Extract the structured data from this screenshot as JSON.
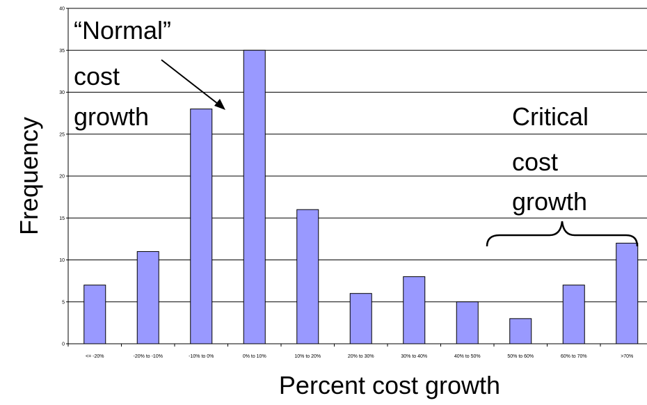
{
  "chart_data": {
    "type": "bar",
    "title": "",
    "xlabel": "Percent cost growth",
    "ylabel": "Frequency",
    "categories": [
      "<= -20%",
      "-20% to -10%",
      "-10% to 0%",
      "0% to 10%",
      "10% to 20%",
      "20% to 30%",
      "30% to 40%",
      "40% to 50%",
      "50% to 60%",
      "60% to 70%",
      ">70%"
    ],
    "values": [
      7,
      11,
      28,
      35,
      16,
      6,
      8,
      5,
      3,
      7,
      12
    ],
    "ylim": [
      0,
      40
    ],
    "yticks": [
      "0",
      "5",
      "10",
      "15",
      "20",
      "25",
      "30",
      "35",
      "40"
    ],
    "grid": "horizontal",
    "bar_color": "#9999ff",
    "bar_stroke": "#000000",
    "annotations": {
      "normal": [
        "“Normal”",
        "cost",
        "growth"
      ],
      "critical": [
        "Critical",
        "cost",
        "growth"
      ]
    }
  }
}
